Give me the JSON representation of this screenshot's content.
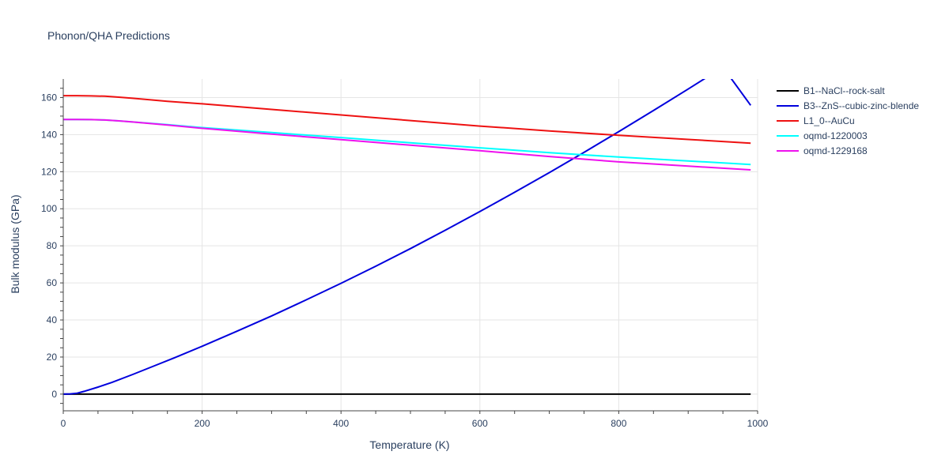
{
  "chart_data": {
    "type": "line",
    "title": "Phonon/QHA Predictions",
    "xlabel": "Temperature (K)",
    "ylabel": "Bulk modulus (GPa)",
    "xlim": [
      0,
      1000
    ],
    "ylim": [
      -9,
      170
    ],
    "xticks": [
      0,
      200,
      400,
      600,
      800,
      1000
    ],
    "yticks": [
      0,
      20,
      40,
      60,
      80,
      100,
      120,
      140,
      160
    ],
    "grid": true,
    "legend_position": "right",
    "series": [
      {
        "name": "B1--NaCl--rock-salt",
        "color": "#000000",
        "x": [
          0,
          990
        ],
        "y": [
          0,
          0
        ]
      },
      {
        "name": "B3--ZnS--cubic-zinc-blende",
        "color": "#0000dd",
        "x": [
          0,
          10,
          20,
          30,
          50,
          70,
          100,
          130,
          160,
          200,
          250,
          300,
          350,
          400,
          450,
          500,
          550,
          600,
          650,
          700,
          750,
          800,
          850,
          900,
          950,
          990
        ],
        "y": [
          0,
          0.1,
          0.5,
          1.5,
          3.8,
          6.3,
          10.6,
          15.1,
          19.6,
          25.8,
          33.9,
          42.2,
          50.9,
          59.8,
          69.0,
          78.5,
          88.4,
          98.5,
          108.9,
          119.5,
          130.4,
          141.6,
          153.0,
          164.6,
          176.4,
          155.8
        ]
      },
      {
        "name": "L1_0--AuCu",
        "color": "#ee1111",
        "x": [
          0,
          20,
          40,
          60,
          80,
          100,
          150,
          200,
          300,
          400,
          500,
          600,
          700,
          800,
          900,
          990
        ],
        "y": [
          161.0,
          161.0,
          160.9,
          160.7,
          160.2,
          159.6,
          158.0,
          156.6,
          153.6,
          150.6,
          147.6,
          144.6,
          142.0,
          139.6,
          137.4,
          135.4
        ]
      },
      {
        "name": "oqmd-1220003",
        "color": "#00ffff",
        "x": [
          0,
          20,
          40,
          60,
          80,
          100,
          150,
          200,
          300,
          400,
          500,
          600,
          700,
          800,
          900,
          990
        ],
        "y": [
          148.2,
          148.2,
          148.1,
          147.9,
          147.4,
          146.8,
          145.4,
          143.8,
          141.1,
          138.4,
          135.6,
          132.9,
          130.3,
          127.9,
          125.8,
          123.9
        ]
      },
      {
        "name": "oqmd-1229168",
        "color": "#ee11ee",
        "x": [
          0,
          20,
          40,
          60,
          80,
          100,
          150,
          200,
          300,
          400,
          500,
          600,
          700,
          800,
          900,
          990
        ],
        "y": [
          148.2,
          148.2,
          148.1,
          147.9,
          147.4,
          146.8,
          145.2,
          143.4,
          140.3,
          137.3,
          134.3,
          131.3,
          128.2,
          125.3,
          123.0,
          121.0
        ]
      }
    ]
  }
}
